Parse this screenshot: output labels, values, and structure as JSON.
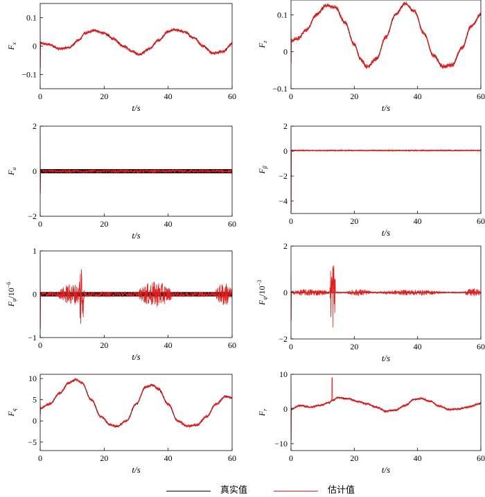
{
  "colors": {
    "true": "#000000",
    "estimate": "#e02020"
  },
  "legend": {
    "true_label": "真实值",
    "estimate_label": "估计值"
  },
  "chart_data": [
    {
      "type": "line",
      "panel": "Fx",
      "ylabel": "F",
      "ysub": "x",
      "xlabel": "t/s",
      "xlim": [
        0,
        60
      ],
      "ylim": [
        -0.15,
        0.15
      ],
      "xticks": [
        0,
        20,
        40,
        60
      ],
      "yticks": [
        -0.1,
        0,
        0.1
      ],
      "ytick_labels": [
        "−0.1",
        "0",
        "0.1"
      ],
      "series": [
        {
          "name": "真实值",
          "x": [
            0,
            3,
            6,
            9,
            12,
            14,
            17,
            20,
            23,
            26,
            29,
            31,
            34,
            37,
            40,
            42,
            45,
            48,
            51,
            54,
            57,
            60
          ],
          "y": [
            0.01,
            0.005,
            -0.01,
            -0.005,
            0.02,
            0.045,
            0.055,
            0.045,
            0.025,
            0.0,
            -0.02,
            -0.03,
            -0.01,
            0.02,
            0.05,
            0.058,
            0.05,
            0.03,
            0.0,
            -0.025,
            -0.02,
            0.008
          ]
        }
      ],
      "noise": 0.006,
      "spike": [
        0.1,
        -0.08
      ]
    },
    {
      "type": "line",
      "panel": "Fz",
      "ylabel": "F",
      "ysub": "z",
      "xlabel": "t/s",
      "xlim": [
        0,
        60
      ],
      "ylim": [
        -0.1,
        0.14
      ],
      "xticks": [
        0,
        20,
        40,
        60
      ],
      "yticks": [
        -0.1,
        0,
        0.1
      ],
      "ytick_labels": [
        "−0.1",
        "0",
        "0.1"
      ],
      "series": [
        {
          "name": "真实值",
          "x": [
            0,
            2,
            5,
            8,
            11,
            14,
            17,
            20,
            22,
            24,
            27,
            30,
            33,
            36,
            39,
            42,
            45,
            48,
            51,
            54,
            57,
            60
          ],
          "y": [
            0.03,
            0.035,
            0.06,
            0.1,
            0.125,
            0.12,
            0.08,
            0.02,
            -0.02,
            -0.04,
            -0.02,
            0.04,
            0.1,
            0.13,
            0.11,
            0.05,
            -0.01,
            -0.04,
            -0.035,
            0.01,
            0.07,
            0.1
          ]
        }
      ],
      "noise": 0.006,
      "spike": [
        0.06,
        -0.03
      ]
    },
    {
      "type": "line",
      "panel": "Fa",
      "ylabel": "F",
      "ysub": "α",
      "xlabel": "t/s",
      "xlim": [
        0,
        60
      ],
      "ylim": [
        -2,
        2
      ],
      "xticks": [
        0,
        20,
        40,
        60
      ],
      "yticks": [
        -2,
        0,
        2
      ],
      "ytick_labels": [
        "−2",
        "0",
        "2"
      ],
      "series": [
        {
          "name": "真实值",
          "x": [
            0,
            10,
            20,
            30,
            40,
            50,
            60
          ],
          "y": [
            0,
            0,
            0,
            0,
            0,
            0,
            0
          ]
        }
      ],
      "band": 0.09,
      "noise": 0.08,
      "spike": [
        1.9,
        -1.0
      ]
    },
    {
      "type": "line",
      "panel": "Fb",
      "ylabel": "F",
      "ysub": "β",
      "xlabel": "t/s",
      "xlim": [
        0,
        60
      ],
      "ylim": [
        -5,
        2
      ],
      "xticks": [
        0,
        20,
        40,
        60
      ],
      "yticks": [
        -4,
        -2,
        0,
        2
      ],
      "ytick_labels": [
        "−4",
        "−2",
        "0",
        "2"
      ],
      "series": [
        {
          "name": "真实值",
          "x": [
            0,
            10,
            20,
            30,
            40,
            50,
            60
          ],
          "y": [
            0.05,
            0.05,
            0.05,
            0.05,
            0.05,
            0.05,
            0.05
          ]
        }
      ],
      "noise": 0.05,
      "spike": [
        1.9,
        -4.8
      ]
    },
    {
      "type": "line",
      "panel": "Fphi",
      "ylabel": "F",
      "ysub": "φ",
      "ysuffix": "/10",
      "yexp": "−6",
      "xlabel": "t/s",
      "xlim": [
        0,
        60
      ],
      "ylim": [
        -1,
        1
      ],
      "xticks": [
        0,
        20,
        40,
        60
      ],
      "yticks": [
        -1,
        0,
        1
      ],
      "ytick_labels": [
        "−1",
        "0",
        "1"
      ],
      "series": [
        {
          "name": "真实值",
          "x": [
            0,
            10,
            20,
            30,
            40,
            50,
            60
          ],
          "y": [
            0,
            0,
            0,
            0,
            0,
            0,
            0
          ]
        }
      ],
      "band": 0.05,
      "noise": 0.06,
      "bursts": [
        {
          "t0": 6,
          "t1": 14,
          "amp": 0.25
        },
        {
          "t0": 12.2,
          "t1": 13.6,
          "amp": 0.95
        },
        {
          "t0": 31,
          "t1": 41,
          "amp": 0.3
        },
        {
          "t0": 55,
          "t1": 60,
          "amp": 0.28
        }
      ],
      "spike": [
        0.95,
        -0.8
      ]
    },
    {
      "type": "line",
      "panel": "Fpsi",
      "ylabel": "F",
      "ysub": "ψ",
      "ysuffix": "/10",
      "yexp": "−3",
      "xlabel": "t/s",
      "xlim": [
        0,
        60
      ],
      "ylim": [
        -2,
        2
      ],
      "xticks": [
        0,
        20,
        40,
        60
      ],
      "yticks": [
        -2,
        0,
        2
      ],
      "ytick_labels": [
        "−2",
        "0",
        "2"
      ],
      "series": [
        {
          "name": "真实值",
          "x": [
            0,
            10,
            20,
            30,
            40,
            50,
            60
          ],
          "y": [
            0,
            0,
            0,
            0,
            0,
            0,
            0
          ]
        }
      ],
      "noise": 0.03,
      "bursts": [
        {
          "t0": 0,
          "t1": 12,
          "amp": 0.15
        },
        {
          "t0": 12.3,
          "t1": 14,
          "amp": 1.7
        },
        {
          "t0": 18,
          "t1": 25,
          "amp": 0.15
        },
        {
          "t0": 28,
          "t1": 48,
          "amp": 0.12
        },
        {
          "t0": 55,
          "t1": 60,
          "amp": 0.18
        }
      ],
      "spike": [
        0.8,
        -1.2
      ]
    },
    {
      "type": "line",
      "panel": "Fq",
      "ylabel": "F",
      "ysub": "q",
      "xlabel": "t/s",
      "xlim": [
        0,
        60
      ],
      "ylim": [
        -7,
        11
      ],
      "xticks": [
        0,
        20,
        40,
        60
      ],
      "yticks": [
        -5,
        0,
        5,
        10
      ],
      "ytick_labels": [
        "−5",
        "0",
        "5",
        "10"
      ],
      "series": [
        {
          "name": "真实值",
          "x": [
            0,
            3,
            6,
            9,
            11,
            13,
            16,
            19,
            22,
            24,
            27,
            30,
            33,
            35,
            37,
            40,
            43,
            46,
            49,
            52,
            55,
            58,
            60
          ],
          "y": [
            3,
            4,
            6.5,
            9,
            9.8,
            9,
            5,
            1,
            -1,
            -1.3,
            0,
            4,
            8,
            8.5,
            7.5,
            4,
            0,
            -1.2,
            -1,
            1,
            4,
            5.8,
            5.5
          ]
        }
      ],
      "noise": 0.35,
      "spike": [
        4,
        1.5
      ]
    },
    {
      "type": "line",
      "panel": "Fr",
      "ylabel": "F",
      "ysub": "r",
      "xlabel": "t/s",
      "xlim": [
        0,
        60
      ],
      "ylim": [
        -12,
        10
      ],
      "xticks": [
        0,
        20,
        40,
        60
      ],
      "yticks": [
        -10,
        0,
        10
      ],
      "ytick_labels": [
        "−10",
        "0",
        "10"
      ],
      "series": [
        {
          "name": "真实值",
          "x": [
            0,
            3,
            6,
            9,
            12,
            13,
            15,
            18,
            21,
            24,
            27,
            30,
            33,
            36,
            39,
            41,
            44,
            47,
            50,
            53,
            56,
            60
          ],
          "y": [
            0,
            1,
            0.5,
            1,
            1.8,
            2.5,
            3.3,
            3,
            2.2,
            1.5,
            0.5,
            -0.6,
            -0.3,
            1,
            2.8,
            3,
            2.2,
            0.8,
            -0.2,
            0,
            0.6,
            1.6
          ]
        }
      ],
      "noise": 0.35,
      "spike": [
        9,
        -9
      ],
      "spike2": {
        "t": 13,
        "up": 9
      }
    }
  ]
}
